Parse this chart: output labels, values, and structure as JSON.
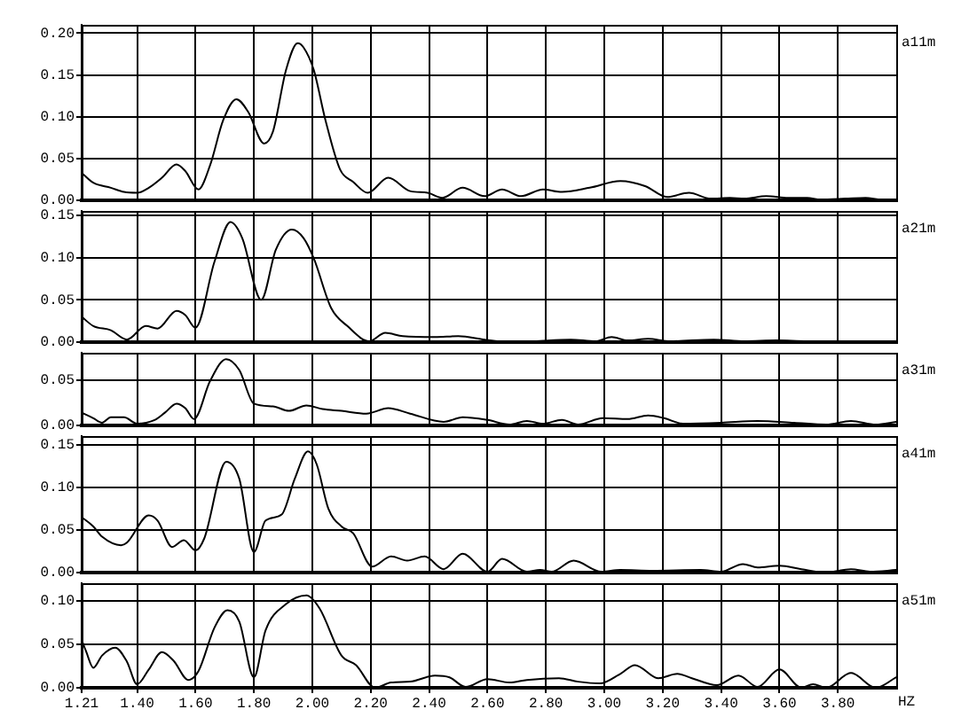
{
  "chart_data": [
    {
      "type": "line",
      "x": [
        1.21,
        1.25,
        1.31,
        1.355,
        1.4,
        1.44,
        1.485,
        1.535,
        1.565,
        1.61,
        1.65,
        1.695,
        1.74,
        1.78,
        1.835,
        1.865,
        1.91,
        1.95,
        1.97,
        2.005,
        2.045,
        2.095,
        2.14,
        2.19,
        2.26,
        2.335,
        2.395,
        2.445,
        2.515,
        2.59,
        2.65,
        2.715,
        2.79,
        2.855,
        2.95,
        3.055,
        3.14,
        3.215,
        3.29,
        3.365,
        3.43,
        3.48,
        3.555,
        3.63,
        3.695,
        3.74,
        3.825,
        3.895,
        3.95,
        4.0
      ],
      "series": [
        {
          "name": "a11m",
          "color": "#000000",
          "values": [
            0.033,
            0.021,
            0.015,
            0.01,
            0.009,
            0.015,
            0.027,
            0.043,
            0.035,
            0.013,
            0.042,
            0.096,
            0.121,
            0.106,
            0.068,
            0.082,
            0.156,
            0.188,
            0.183,
            0.156,
            0.096,
            0.037,
            0.022,
            0.009,
            0.027,
            0.011,
            0.009,
            0.003,
            0.015,
            0.005,
            0.013,
            0.005,
            0.013,
            0.01,
            0.015,
            0.023,
            0.017,
            0.004,
            0.009,
            0.002,
            0.003,
            0.002,
            0.005,
            0.003,
            0.003,
            0.001,
            0.002,
            0.003,
            0.001,
            0.001
          ]
        }
      ],
      "xlim": [
        1.21,
        4.0
      ],
      "xticks": [
        1.21,
        1.4,
        1.6,
        1.8,
        2.0,
        2.2,
        2.4,
        2.6,
        2.8,
        3.0,
        3.2,
        3.4,
        3.6,
        3.8
      ],
      "ylim": [
        0,
        0.21
      ],
      "yticks": [
        {
          "value": 0,
          "label": "0.00"
        },
        {
          "value": 0.05,
          "label": "0.05"
        },
        {
          "value": 0.1,
          "label": "0.10"
        },
        {
          "value": 0.15,
          "label": "0.15"
        },
        {
          "value": 0.2,
          "label": "0.20"
        }
      ],
      "grid": true,
      "tick_labels": "y"
    },
    {
      "type": "line",
      "x": [
        1.21,
        1.25,
        1.31,
        1.365,
        1.43,
        1.47,
        1.535,
        1.565,
        1.6,
        1.665,
        1.72,
        1.76,
        1.825,
        1.875,
        1.93,
        1.97,
        2.005,
        2.065,
        2.12,
        2.195,
        2.25,
        2.31,
        2.42,
        2.5,
        2.59,
        2.675,
        2.76,
        2.885,
        2.97,
        3.025,
        3.08,
        3.15,
        3.225,
        3.375,
        3.48,
        3.59,
        3.695,
        3.91,
        4.0
      ],
      "series": [
        {
          "name": "a21m",
          "color": "#000000",
          "values": [
            0.03,
            0.019,
            0.014,
            0.003,
            0.019,
            0.016,
            0.037,
            0.032,
            0.017,
            0.095,
            0.142,
            0.123,
            0.05,
            0.109,
            0.133,
            0.123,
            0.099,
            0.04,
            0.019,
            0.001,
            0.011,
            0.007,
            0.006,
            0.007,
            0.003,
            0.0,
            0.001,
            0.003,
            0.001,
            0.006,
            0.002,
            0.004,
            0.001,
            0.003,
            0.001,
            0.002,
            0.001,
            0.001,
            0.001
          ]
        }
      ],
      "xlim": [
        1.21,
        4.0
      ],
      "xticks": [
        1.21,
        1.4,
        1.6,
        1.8,
        2.0,
        2.2,
        2.4,
        2.6,
        2.8,
        3.0,
        3.2,
        3.4,
        3.6,
        3.8
      ],
      "ylim": [
        0,
        0.155
      ],
      "yticks": [
        {
          "value": 0,
          "label": "0.00"
        },
        {
          "value": 0.05,
          "label": "0.05"
        },
        {
          "value": 0.1,
          "label": "0.10"
        },
        {
          "value": 0.15,
          "label": "0.15"
        }
      ],
      "grid": true,
      "tick_labels": "y"
    },
    {
      "type": "line",
      "x": [
        1.21,
        1.25,
        1.28,
        1.31,
        1.355,
        1.4,
        1.46,
        1.495,
        1.535,
        1.565,
        1.595,
        1.65,
        1.705,
        1.75,
        1.8,
        1.865,
        1.92,
        1.98,
        2.035,
        2.1,
        2.185,
        2.26,
        2.335,
        2.45,
        2.515,
        2.6,
        2.675,
        2.735,
        2.79,
        2.855,
        2.91,
        2.995,
        3.08,
        3.15,
        3.205,
        3.27,
        3.4,
        3.525,
        3.65,
        3.76,
        3.845,
        3.93,
        4.0
      ],
      "series": [
        {
          "name": "a31m",
          "color": "#000000",
          "values": [
            0.014,
            0.008,
            0.003,
            0.009,
            0.009,
            0.002,
            0.006,
            0.014,
            0.024,
            0.019,
            0.007,
            0.049,
            0.073,
            0.061,
            0.024,
            0.021,
            0.016,
            0.022,
            0.018,
            0.016,
            0.013,
            0.019,
            0.013,
            0.004,
            0.009,
            0.006,
            0.001,
            0.005,
            0.002,
            0.006,
            0.001,
            0.008,
            0.007,
            0.011,
            0.008,
            0.002,
            0.003,
            0.005,
            0.003,
            0.001,
            0.005,
            0.001,
            0.004
          ]
        }
      ],
      "xlim": [
        1.21,
        4.0
      ],
      "xticks": [
        1.21,
        1.4,
        1.6,
        1.8,
        2.0,
        2.2,
        2.4,
        2.6,
        2.8,
        3.0,
        3.2,
        3.4,
        3.6,
        3.8
      ],
      "ylim": [
        0,
        0.08
      ],
      "yticks": [
        {
          "value": 0,
          "label": "0.00"
        },
        {
          "value": 0.05,
          "label": "0.05"
        }
      ],
      "grid": true,
      "tick_labels": "y"
    },
    {
      "type": "line",
      "x": [
        1.21,
        1.25,
        1.28,
        1.345,
        1.365,
        1.44,
        1.47,
        1.52,
        1.56,
        1.6,
        1.63,
        1.705,
        1.75,
        1.8,
        1.84,
        1.895,
        1.94,
        1.985,
        2.015,
        2.055,
        2.1,
        2.14,
        2.205,
        2.27,
        2.325,
        2.385,
        2.45,
        2.515,
        2.6,
        2.65,
        2.735,
        2.78,
        2.82,
        2.895,
        2.99,
        3.055,
        3.165,
        3.33,
        3.4,
        3.475,
        3.525,
        3.6,
        3.675,
        3.76,
        3.845,
        3.91,
        4.0
      ],
      "series": [
        {
          "name": "a41m",
          "color": "#000000",
          "values": [
            0.065,
            0.054,
            0.042,
            0.032,
            0.035,
            0.067,
            0.061,
            0.03,
            0.038,
            0.026,
            0.04,
            0.13,
            0.11,
            0.024,
            0.061,
            0.068,
            0.11,
            0.142,
            0.127,
            0.075,
            0.054,
            0.046,
            0.007,
            0.019,
            0.014,
            0.019,
            0.004,
            0.022,
            0.001,
            0.016,
            0.001,
            0.003,
            0.001,
            0.014,
            0.001,
            0.003,
            0.002,
            0.003,
            0.001,
            0.01,
            0.006,
            0.008,
            0.004,
            0.0,
            0.004,
            0.001,
            0.003
          ]
        }
      ],
      "xlim": [
        1.21,
        4.0
      ],
      "xticks": [
        1.21,
        1.4,
        1.6,
        1.8,
        2.0,
        2.2,
        2.4,
        2.6,
        2.8,
        3.0,
        3.2,
        3.4,
        3.6,
        3.8
      ],
      "ylim": [
        0,
        0.16
      ],
      "yticks": [
        {
          "value": 0,
          "label": "0.00"
        },
        {
          "value": 0.05,
          "label": "0.05"
        },
        {
          "value": 0.1,
          "label": "0.10"
        },
        {
          "value": 0.15,
          "label": "0.15"
        }
      ],
      "grid": true,
      "tick_labels": "y"
    },
    {
      "type": "line",
      "xlabel": "HZ",
      "x": [
        1.21,
        1.225,
        1.25,
        1.28,
        1.325,
        1.365,
        1.4,
        1.44,
        1.485,
        1.525,
        1.575,
        1.61,
        1.665,
        1.71,
        1.75,
        1.8,
        1.84,
        1.91,
        1.98,
        2.025,
        2.1,
        2.15,
        2.215,
        2.27,
        2.335,
        2.42,
        2.47,
        2.525,
        2.6,
        2.675,
        2.735,
        2.845,
        2.91,
        2.985,
        3.055,
        3.105,
        3.185,
        3.25,
        3.3,
        3.385,
        3.46,
        3.525,
        3.6,
        3.675,
        3.715,
        3.76,
        3.845,
        3.93,
        4.0
      ],
      "series": [
        {
          "name": "a51m",
          "color": "#000000",
          "values": [
            0.055,
            0.042,
            0.023,
            0.037,
            0.046,
            0.03,
            0.004,
            0.021,
            0.041,
            0.031,
            0.009,
            0.019,
            0.069,
            0.089,
            0.076,
            0.012,
            0.066,
            0.096,
            0.106,
            0.091,
            0.037,
            0.026,
            0.0,
            0.006,
            0.007,
            0.014,
            0.012,
            0.001,
            0.01,
            0.006,
            0.009,
            0.011,
            0.007,
            0.005,
            0.016,
            0.026,
            0.011,
            0.016,
            0.011,
            0.003,
            0.014,
            0.001,
            0.021,
            0.0,
            0.004,
            0.0,
            0.017,
            0.0,
            0.012
          ]
        }
      ],
      "xlim": [
        1.21,
        4.0
      ],
      "xticks": [
        1.21,
        {
          "value": 1.4,
          "label": "1.40"
        },
        {
          "value": 1.6,
          "label": "1.60"
        },
        {
          "value": 1.8,
          "label": "1.80"
        },
        {
          "value": 2.0,
          "label": "2.00"
        },
        {
          "value": 2.2,
          "label": "2.20"
        },
        {
          "value": 2.4,
          "label": "2.40"
        },
        {
          "value": 2.6,
          "label": "2.60"
        },
        {
          "value": 2.8,
          "label": "2.80"
        },
        {
          "value": 3.0,
          "label": "3.00"
        },
        {
          "value": 3.2,
          "label": "3.20"
        },
        {
          "value": 3.4,
          "label": "3.40"
        },
        {
          "value": 3.6,
          "label": "3.60"
        },
        {
          "value": 3.8,
          "label": "3.80"
        }
      ],
      "ylim": [
        0,
        0.12
      ],
      "yticks": [
        {
          "value": 0,
          "label": "0.00"
        },
        {
          "value": 0.05,
          "label": "0.05"
        },
        {
          "value": 0.1,
          "label": "0.10"
        }
      ],
      "grid": true
    }
  ]
}
